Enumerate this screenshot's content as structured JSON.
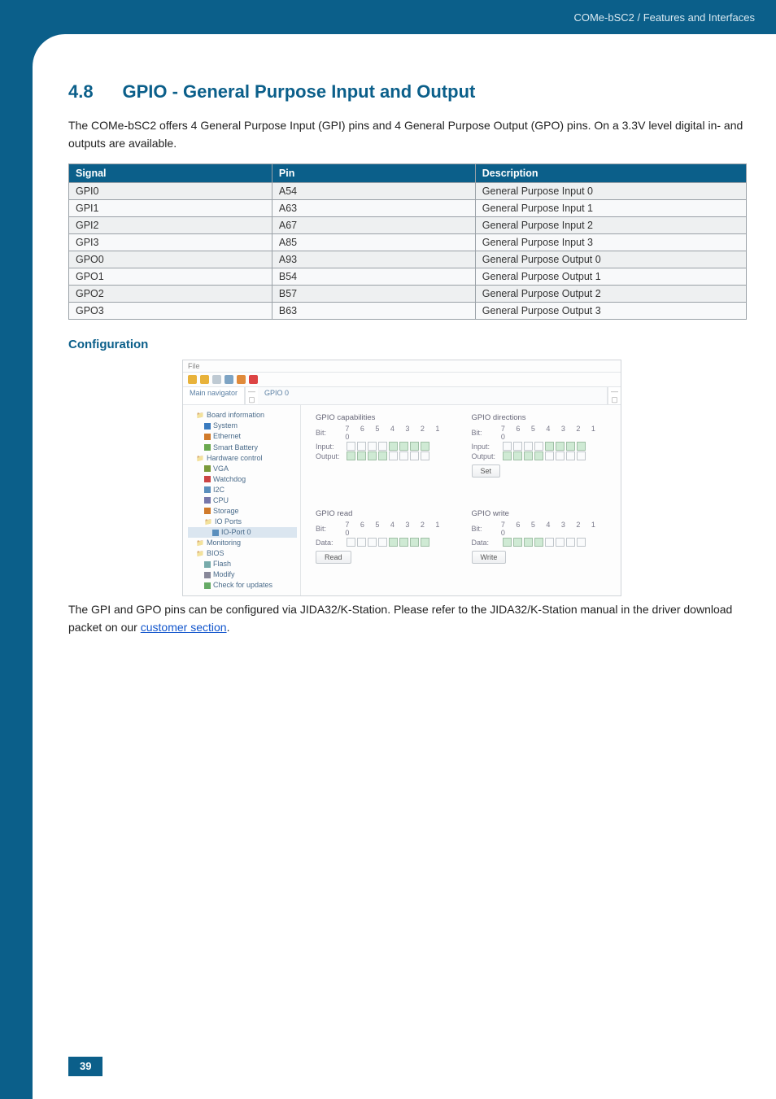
{
  "header": {
    "breadcrumb": "COMe-bSC2 / Features and Interfaces"
  },
  "section": {
    "number": "4.8",
    "title": "GPIO - General Purpose Input and Output",
    "intro": "The COMe-bSC2 offers 4 General Purpose Input (GPI) pins and 4 General Purpose Output (GPO) pins. On a 3.3V level digital in- and outputs are available."
  },
  "table": {
    "columns": [
      "Signal",
      "Pin",
      "Description"
    ],
    "rows": [
      [
        "GPI0",
        "A54",
        "General Purpose Input 0"
      ],
      [
        "GPI1",
        "A63",
        "General Purpose Input 1"
      ],
      [
        "GPI2",
        "A67",
        "General Purpose Input 2"
      ],
      [
        "GPI3",
        "A85",
        "General Purpose Input 3"
      ],
      [
        "GPO0",
        "A93",
        "General Purpose Output 0"
      ],
      [
        "GPO1",
        "B54",
        "General Purpose Output 1"
      ],
      [
        "GPO2",
        "B57",
        "General Purpose Output 2"
      ],
      [
        "GPO3",
        "B63",
        "General Purpose Output 3"
      ]
    ]
  },
  "config": {
    "heading": "Configuration"
  },
  "screenshot": {
    "file_menu": "File",
    "toolbar_colors": [
      "#e8b23a",
      "#e8b23a",
      "#bfcad3",
      "#7ea4c4",
      "#e08a3a",
      "#d44"
    ],
    "tabs": {
      "left": "Main navigator",
      "right": "GPIO 0",
      "min1": "— ▢",
      "min2": "— ▢"
    },
    "tree": [
      {
        "lvl": 0,
        "type": "folder",
        "label": "Board information"
      },
      {
        "lvl": 1,
        "type": "leaf",
        "color": "#3a7bbf",
        "label": "System"
      },
      {
        "lvl": 1,
        "type": "leaf",
        "color": "#d07a2a",
        "label": "Ethernet"
      },
      {
        "lvl": 1,
        "type": "leaf",
        "color": "#6aa84f",
        "label": "Smart Battery"
      },
      {
        "lvl": 0,
        "type": "folder",
        "label": "Hardware control"
      },
      {
        "lvl": 1,
        "type": "leaf",
        "color": "#7a9a3a",
        "label": "VGA"
      },
      {
        "lvl": 1,
        "type": "leaf",
        "color": "#c44",
        "label": "Watchdog"
      },
      {
        "lvl": 1,
        "type": "leaf",
        "color": "#5a8fbd",
        "label": "I2C"
      },
      {
        "lvl": 1,
        "type": "leaf",
        "color": "#77a",
        "label": "CPU"
      },
      {
        "lvl": 1,
        "type": "leaf",
        "color": "#d07a2a",
        "label": "Storage"
      },
      {
        "lvl": 1,
        "type": "folder",
        "label": "IO Ports"
      },
      {
        "lvl": 2,
        "type": "leaf",
        "color": "#5a8fbd",
        "label": "IO-Port 0",
        "sel": true
      },
      {
        "lvl": 0,
        "type": "folder",
        "label": "Monitoring"
      },
      {
        "lvl": 0,
        "type": "folder",
        "label": "BIOS"
      },
      {
        "lvl": 1,
        "type": "leaf",
        "color": "#7aa",
        "label": "Flash"
      },
      {
        "lvl": 1,
        "type": "leaf",
        "color": "#889",
        "label": "Modify"
      },
      {
        "lvl": 1,
        "type": "leaf",
        "color": "#6a6",
        "label": "Check for updates"
      }
    ],
    "panels": {
      "bit_header": "7 6 5 4 3 2 1 0",
      "cap": {
        "title": "GPIO capabilities",
        "rows": [
          {
            "label": "Bit:",
            "digits": true
          },
          {
            "label": "Input:",
            "on": [
              0,
              0,
              0,
              0,
              1,
              1,
              1,
              1
            ]
          },
          {
            "label": "Output:",
            "on": [
              1,
              1,
              1,
              1,
              0,
              0,
              0,
              0
            ]
          }
        ]
      },
      "dir": {
        "title": "GPIO directions",
        "rows": [
          {
            "label": "Bit:",
            "digits": true
          },
          {
            "label": "Input:",
            "on": [
              0,
              0,
              0,
              0,
              1,
              1,
              1,
              1
            ]
          },
          {
            "label": "Output:",
            "on": [
              1,
              1,
              1,
              1,
              0,
              0,
              0,
              0
            ]
          }
        ],
        "button": "Set"
      },
      "read": {
        "title": "GPIO read",
        "rows": [
          {
            "label": "Bit:",
            "digits": true
          },
          {
            "label": "Data:",
            "on": [
              0,
              0,
              0,
              0,
              1,
              1,
              1,
              1
            ]
          }
        ],
        "button": "Read"
      },
      "write": {
        "title": "GPIO write",
        "rows": [
          {
            "label": "Bit:",
            "digits": true
          },
          {
            "label": "Data:",
            "on": [
              1,
              1,
              1,
              1,
              0,
              0,
              0,
              0
            ]
          }
        ],
        "button": "Write"
      }
    }
  },
  "outro": {
    "pre": "The GPI and GPO pins can be configured via JIDA32/K-Station. Please refer to the JIDA32/K-Station manual in the driver download packet on our ",
    "link": "customer section",
    "post": "."
  },
  "page_number": "39"
}
